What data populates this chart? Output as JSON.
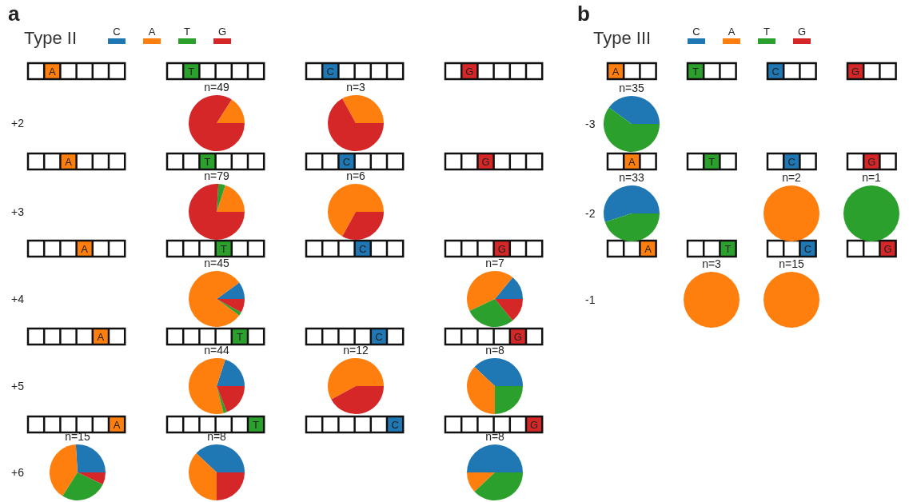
{
  "chart_data": [
    {
      "type": "other",
      "title": "a",
      "subtitle": "Type II",
      "categories": [
        "C",
        "A",
        "T",
        "G"
      ],
      "colors": [
        "#1f77b4",
        "#ff7f0e",
        "#2ca02c",
        "#d62728"
      ]
    },
    {
      "type": "other",
      "title": "b",
      "subtitle": "Type III",
      "categories": [
        "C",
        "A",
        "T",
        "G"
      ],
      "colors": [
        "#1f77b4",
        "#ff7f0e",
        "#2ca02c",
        "#d62728"
      ]
    },
    {
      "type": "other",
      "categories": [
        "A",
        "T",
        "C",
        "G"
      ],
      "colors": [
        "#ff7f0e",
        "#2ca02c",
        "#1f77b4",
        "#d62728"
      ]
    },
    {
      "type": "other",
      "categories": [
        "A",
        "T",
        "C",
        "G"
      ],
      "colors": [
        "#ff7f0e",
        "#2ca02c",
        "#1f77b4",
        "#d62728"
      ]
    },
    {
      "type": "pie",
      "ylabel": "+2",
      "title": "n=49",
      "values": [
        16,
        84
      ],
      "colors": [
        "#ff7f0e",
        "#d62728"
      ]
    },
    {
      "type": "pie",
      "title": "n=3",
      "values": [
        33,
        67
      ],
      "colors": [
        "#ff7f0e",
        "#d62728"
      ]
    },
    {
      "type": "pie",
      "ylabel": "+3",
      "title": "n=79",
      "values": [
        20,
        4,
        76
      ],
      "colors": [
        "#ff7f0e",
        "#2ca02c",
        "#d62728"
      ]
    },
    {
      "type": "pie",
      "title": "n=6",
      "values": [
        67,
        33
      ],
      "colors": [
        "#ff7f0e",
        "#d62728"
      ]
    },
    {
      "type": "pie",
      "ylabel": "+4",
      "title": "n=45",
      "values": [
        10,
        80,
        2,
        8
      ],
      "colors": [
        "#1f77b4",
        "#ff7f0e",
        "#2ca02c",
        "#d62728"
      ]
    },
    {
      "type": "pie",
      "title": "n=7",
      "values": [
        14,
        43,
        29,
        14
      ],
      "colors": [
        "#1f77b4",
        "#ff7f0e",
        "#2ca02c",
        "#d62728"
      ]
    },
    {
      "type": "pie",
      "ylabel": "+5",
      "title": "n=44",
      "values": [
        20,
        59,
        2,
        19
      ],
      "colors": [
        "#1f77b4",
        "#ff7f0e",
        "#2ca02c",
        "#d62728"
      ]
    },
    {
      "type": "pie",
      "title": "n=12",
      "values": [
        58,
        42
      ],
      "colors": [
        "#ff7f0e",
        "#d62728"
      ]
    },
    {
      "type": "pie",
      "title": "n=8",
      "values": [
        38,
        37,
        25
      ],
      "colors": [
        "#1f77b4",
        "#ff7f0e",
        "#2ca02c"
      ]
    },
    {
      "type": "pie",
      "ylabel": "+6",
      "title": "n=15",
      "values": [
        26,
        40,
        27,
        7
      ],
      "colors": [
        "#1f77b4",
        "#ff7f0e",
        "#2ca02c",
        "#d62728"
      ]
    },
    {
      "type": "pie",
      "title": "n=8",
      "values": [
        38,
        37,
        25
      ],
      "colors": [
        "#1f77b4",
        "#ff7f0e",
        "#d62728"
      ]
    },
    {
      "type": "pie",
      "title": "n=8",
      "values": [
        50,
        12,
        38
      ],
      "colors": [
        "#1f77b4",
        "#ff7f0e",
        "#2ca02c"
      ]
    },
    {
      "type": "pie",
      "ylabel": "-3",
      "title": "n=35",
      "values": [
        40,
        60
      ],
      "colors": [
        "#1f77b4",
        "#2ca02c"
      ]
    },
    {
      "type": "pie",
      "ylabel": "-2",
      "title": "n=33",
      "values": [
        55,
        45
      ],
      "colors": [
        "#1f77b4",
        "#2ca02c"
      ]
    },
    {
      "type": "pie",
      "title": "n=2",
      "values": [
        100
      ],
      "colors": [
        "#ff7f0e"
      ]
    },
    {
      "type": "pie",
      "title": "n=1",
      "values": [
        100
      ],
      "colors": [
        "#2ca02c"
      ]
    },
    {
      "type": "pie",
      "ylabel": "-1",
      "title": "n=3",
      "values": [
        100
      ],
      "colors": [
        "#ff7f0e"
      ]
    },
    {
      "type": "pie",
      "title": "n=15",
      "values": [
        100
      ],
      "colors": [
        "#ff7f0e"
      ]
    }
  ]
}
